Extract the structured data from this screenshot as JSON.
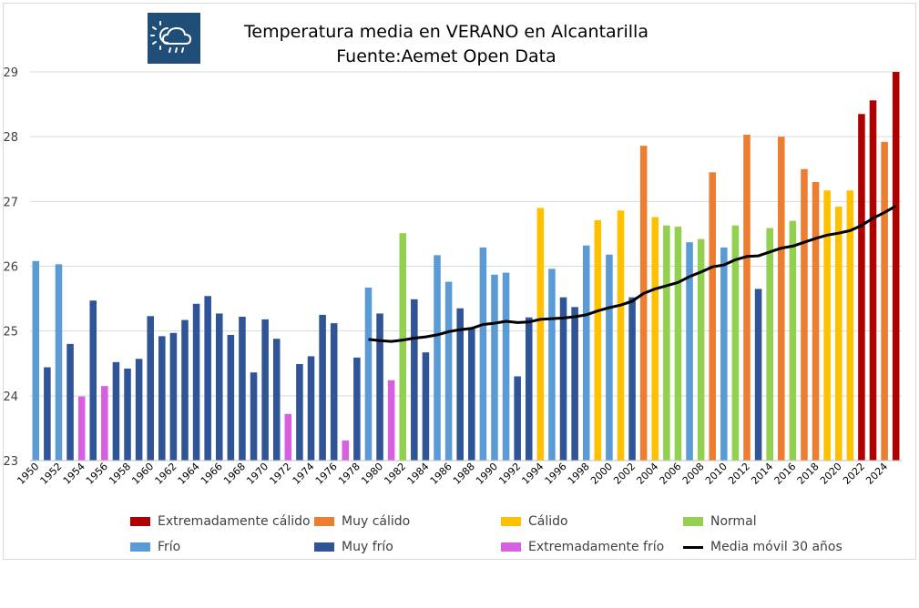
{
  "title": "Temperatura media en VERANO en Alcantarilla",
  "subtitle": "Fuente:Aemet Open Data",
  "logo_icon": "weather-sun-cloud-rain-icon",
  "colors": {
    "extremadamente_calido": "#b00000",
    "muy_calido": "#ed7d31",
    "calido": "#ffc000",
    "normal": "#92d050",
    "frio": "#5b9bd5",
    "muy_frio": "#2f5597",
    "extremadamente_frio": "#d660e0",
    "media_movil": "#000000",
    "grid": "#d9d9d9",
    "logo_bg": "#1f4e79"
  },
  "legend": [
    {
      "key": "extremadamente_calido",
      "label": "Extremadamente cálido"
    },
    {
      "key": "muy_calido",
      "label": "Muy cálido"
    },
    {
      "key": "calido",
      "label": "Cálido"
    },
    {
      "key": "normal",
      "label": "Normal"
    },
    {
      "key": "frio",
      "label": "Frío"
    },
    {
      "key": "muy_frio",
      "label": "Muy frío"
    },
    {
      "key": "extremadamente_frio",
      "label": "Extremadamente frío"
    },
    {
      "key": "media_movil",
      "label": "Media móvil 30 años"
    }
  ],
  "chart_data": {
    "type": "bar",
    "title": "Temperatura media en VERANO en Alcantarilla",
    "subtitle": "Fuente:Aemet Open Data",
    "ylim": [
      23,
      29
    ],
    "yticks": [
      23,
      24,
      25,
      26,
      27,
      28,
      29
    ],
    "grid": true,
    "legend_position": "bottom",
    "x_tick_step": 2,
    "years": [
      1950,
      1951,
      1952,
      1953,
      1954,
      1955,
      1956,
      1957,
      1958,
      1959,
      1960,
      1961,
      1962,
      1963,
      1964,
      1965,
      1966,
      1967,
      1968,
      1969,
      1970,
      1971,
      1972,
      1973,
      1974,
      1975,
      1976,
      1977,
      1978,
      1979,
      1980,
      1981,
      1982,
      1983,
      1984,
      1985,
      1986,
      1987,
      1988,
      1989,
      1990,
      1991,
      1992,
      1993,
      1994,
      1995,
      1996,
      1997,
      1998,
      1999,
      2000,
      2001,
      2002,
      2003,
      2004,
      2005,
      2006,
      2007,
      2008,
      2009,
      2010,
      2011,
      2012,
      2013,
      2014,
      2015,
      2016,
      2017,
      2018,
      2019,
      2020,
      2021,
      2022,
      2023,
      2024,
      2025
    ],
    "values": [
      26.08,
      24.44,
      26.03,
      24.8,
      23.99,
      25.47,
      24.15,
      24.52,
      24.42,
      24.57,
      25.23,
      24.92,
      24.97,
      25.17,
      25.42,
      25.54,
      25.27,
      24.94,
      25.22,
      24.36,
      25.18,
      24.88,
      23.72,
      24.49,
      24.61,
      25.25,
      25.12,
      23.31,
      24.59,
      25.67,
      25.27,
      24.24,
      26.51,
      25.49,
      24.67,
      26.17,
      25.76,
      25.35,
      25.03,
      26.29,
      25.87,
      25.9,
      24.3,
      25.21,
      26.9,
      25.96,
      25.52,
      25.37,
      26.32,
      26.71,
      26.18,
      26.86,
      25.52,
      27.86,
      26.76,
      26.63,
      26.61,
      26.37,
      26.42,
      27.45,
      26.29,
      26.63,
      28.03,
      25.65,
      26.59,
      28.0,
      26.7,
      27.5,
      27.3,
      27.17,
      26.92,
      27.17,
      28.35,
      28.56,
      27.92,
      29.0
    ],
    "categories": [
      "frio",
      "muy_frio",
      "frio",
      "muy_frio",
      "extremadamente_frio",
      "muy_frio",
      "extremadamente_frio",
      "muy_frio",
      "muy_frio",
      "muy_frio",
      "muy_frio",
      "muy_frio",
      "muy_frio",
      "muy_frio",
      "muy_frio",
      "muy_frio",
      "muy_frio",
      "muy_frio",
      "muy_frio",
      "muy_frio",
      "muy_frio",
      "muy_frio",
      "extremadamente_frio",
      "muy_frio",
      "muy_frio",
      "muy_frio",
      "muy_frio",
      "extremadamente_frio",
      "muy_frio",
      "frio",
      "muy_frio",
      "extremadamente_frio",
      "normal",
      "muy_frio",
      "muy_frio",
      "frio",
      "frio",
      "muy_frio",
      "muy_frio",
      "frio",
      "frio",
      "frio",
      "muy_frio",
      "muy_frio",
      "calido",
      "frio",
      "muy_frio",
      "muy_frio",
      "frio",
      "calido",
      "frio",
      "calido",
      "muy_frio",
      "muy_calido",
      "calido",
      "normal",
      "normal",
      "frio",
      "normal",
      "muy_calido",
      "frio",
      "normal",
      "muy_calido",
      "muy_frio",
      "normal",
      "muy_calido",
      "normal",
      "muy_calido",
      "muy_calido",
      "calido",
      "calido",
      "calido",
      "extremadamente_calido",
      "extremadamente_calido",
      "muy_calido",
      "extremadamente_calido"
    ],
    "moving_average": {
      "name": "Media móvil 30 años",
      "years": [
        1979,
        1980,
        1981,
        1982,
        1983,
        1984,
        1985,
        1986,
        1987,
        1988,
        1989,
        1990,
        1991,
        1992,
        1993,
        1994,
        1995,
        1996,
        1997,
        1998,
        1999,
        2000,
        2001,
        2002,
        2003,
        2004,
        2005,
        2006,
        2007,
        2008,
        2009,
        2010,
        2011,
        2012,
        2013,
        2014,
        2015,
        2016,
        2017,
        2018,
        2019,
        2020,
        2021,
        2022,
        2023,
        2024,
        2025
      ],
      "values": [
        24.87,
        24.85,
        24.84,
        24.86,
        24.89,
        24.91,
        24.94,
        24.99,
        25.02,
        25.04,
        25.1,
        25.12,
        25.15,
        25.13,
        25.14,
        25.18,
        25.19,
        25.2,
        25.22,
        25.25,
        25.31,
        25.36,
        25.4,
        25.46,
        25.58,
        25.65,
        25.7,
        25.75,
        25.84,
        25.91,
        25.99,
        26.02,
        26.1,
        26.15,
        26.16,
        26.22,
        26.28,
        26.31,
        26.37,
        26.43,
        26.48,
        26.51,
        26.55,
        26.63,
        26.74,
        26.83,
        26.93
      ]
    }
  }
}
